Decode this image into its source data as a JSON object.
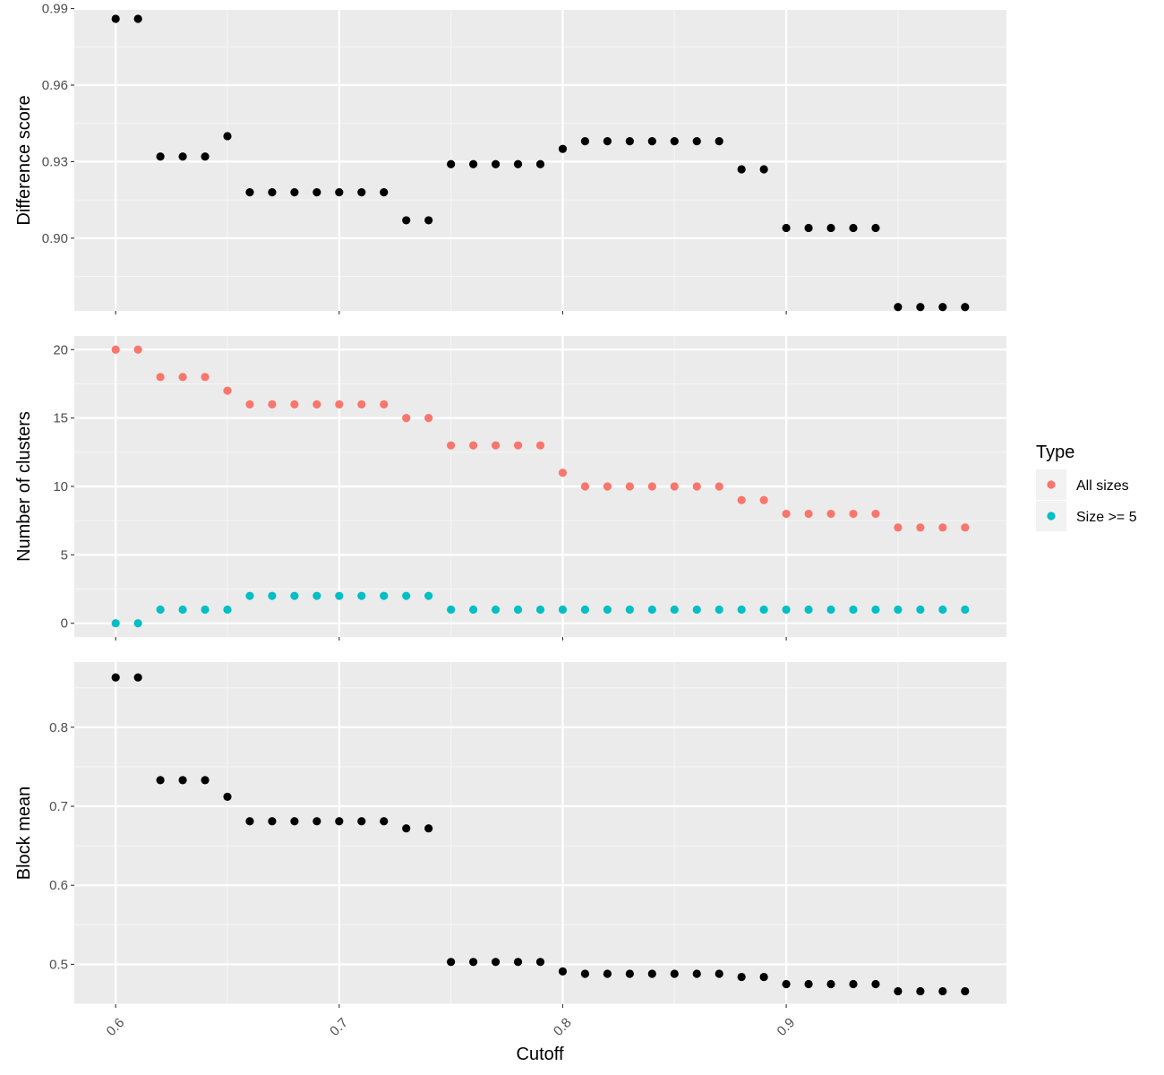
{
  "colors": {
    "panel_bg": "#ebebeb",
    "grid_major": "#ffffff",
    "grid_minor": "#f5f5f5",
    "tick": "#333333",
    "point_default": "#000000",
    "all_sizes": "#f8766d",
    "size_ge_5": "#00bfc4"
  },
  "chart_data": {
    "type": "scatter",
    "layout": "faceted-vertical",
    "xlabel": "Cutoff",
    "x_ticks": [
      0.6,
      0.7,
      0.8,
      0.9
    ],
    "x_tick_labels": [
      "0.6",
      "0.7",
      "0.8",
      "0.9"
    ],
    "xlim": [
      0.5815,
      0.9985
    ],
    "x": [
      0.6,
      0.61,
      0.62,
      0.63,
      0.64,
      0.65,
      0.66,
      0.67,
      0.68,
      0.69,
      0.7,
      0.71,
      0.72,
      0.73,
      0.74,
      0.75,
      0.76,
      0.77,
      0.78,
      0.79,
      0.8,
      0.81,
      0.82,
      0.83,
      0.84,
      0.85,
      0.86,
      0.87,
      0.88,
      0.89,
      0.9,
      0.91,
      0.92,
      0.93,
      0.94,
      0.95,
      0.96,
      0.97,
      0.98
    ],
    "grid": true,
    "panels": [
      {
        "ylabel": "Difference score",
        "ylim": [
          0.8715,
          0.9895
        ],
        "y_ticks": [
          0.9,
          0.93,
          0.96,
          0.99
        ],
        "y_tick_labels": [
          "0.90",
          "0.93",
          "0.96",
          "0.99"
        ],
        "series": [
          {
            "values": [
              0.986,
              0.986,
              0.932,
              0.932,
              0.932,
              0.94,
              0.918,
              0.918,
              0.918,
              0.918,
              0.918,
              0.918,
              0.918,
              0.907,
              0.907,
              0.929,
              0.929,
              0.929,
              0.929,
              0.929,
              0.935,
              0.938,
              0.938,
              0.938,
              0.938,
              0.938,
              0.938,
              0.938,
              0.927,
              0.927,
              0.904,
              0.904,
              0.904,
              0.904,
              0.904,
              0.873,
              0.873,
              0.873,
              0.873
            ]
          }
        ]
      },
      {
        "ylabel": "Number of clusters",
        "ylim": [
          -1,
          21
        ],
        "y_ticks": [
          0,
          5,
          10,
          15,
          20
        ],
        "y_tick_labels": [
          "0",
          "5",
          "10",
          "15",
          "20"
        ],
        "series": [
          {
            "name": "All sizes",
            "values": [
              20,
              20,
              18,
              18,
              18,
              17,
              16,
              16,
              16,
              16,
              16,
              16,
              16,
              15,
              15,
              13,
              13,
              13,
              13,
              13,
              11,
              10,
              10,
              10,
              10,
              10,
              10,
              10,
              9,
              9,
              8,
              8,
              8,
              8,
              8,
              7,
              7,
              7,
              7
            ]
          },
          {
            "name": "Size >= 5",
            "values": [
              0,
              0,
              1,
              1,
              1,
              1,
              2,
              2,
              2,
              2,
              2,
              2,
              2,
              2,
              2,
              1,
              1,
              1,
              1,
              1,
              1,
              1,
              1,
              1,
              1,
              1,
              1,
              1,
              1,
              1,
              1,
              1,
              1,
              1,
              1,
              1,
              1,
              1,
              1
            ]
          }
        ]
      },
      {
        "ylabel": "Block mean",
        "ylim": [
          0.4495,
          0.8825
        ],
        "y_ticks": [
          0.5,
          0.6,
          0.7,
          0.8
        ],
        "y_tick_labels": [
          "0.5",
          "0.6",
          "0.7",
          "0.8"
        ],
        "series": [
          {
            "values": [
              0.863,
              0.863,
              0.733,
              0.733,
              0.733,
              0.712,
              0.681,
              0.681,
              0.681,
              0.681,
              0.681,
              0.681,
              0.681,
              0.672,
              0.672,
              0.503,
              0.503,
              0.503,
              0.503,
              0.503,
              0.491,
              0.488,
              0.488,
              0.488,
              0.488,
              0.488,
              0.488,
              0.488,
              0.484,
              0.484,
              0.475,
              0.475,
              0.475,
              0.475,
              0.475,
              0.466,
              0.466,
              0.466,
              0.466
            ]
          }
        ]
      }
    ],
    "legend": {
      "title": "Type",
      "position": "right",
      "entries": [
        "All sizes",
        "Size >= 5"
      ]
    }
  }
}
